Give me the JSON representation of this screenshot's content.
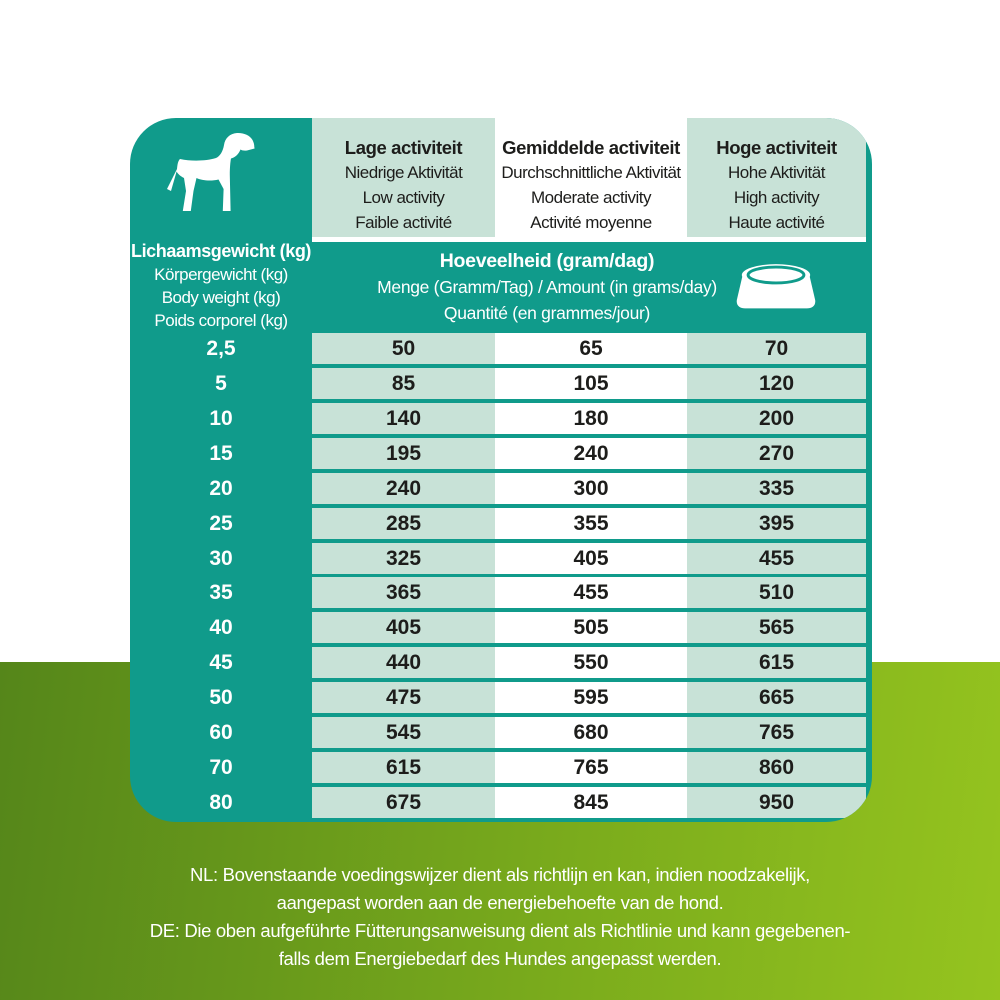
{
  "colors": {
    "teal": "#109b8b",
    "cell_green": "#c8e2d7",
    "cell_white": "#ffffff",
    "text_dark": "#1d1d1b",
    "text_white": "#ffffff",
    "band_gradient_start": "#55861a",
    "band_gradient_end": "#95c41f"
  },
  "icons": {
    "dog": "dog-silhouette",
    "bowl": "dog-bowl"
  },
  "weight_header": {
    "lines": [
      "Lichaamsgewicht (kg)",
      "Körpergewicht (kg)",
      "Body weight (kg)",
      "Poids corporel (kg)"
    ]
  },
  "activity_columns": [
    {
      "id": "low",
      "lines": [
        "Lage activiteit",
        "Niedrige Aktivität",
        "Low activity",
        "Faible activité"
      ]
    },
    {
      "id": "moderate",
      "lines": [
        "Gemiddelde activiteit",
        "Durchschnittliche Aktivität",
        "Moderate activity",
        "Activité moyenne"
      ]
    },
    {
      "id": "high",
      "lines": [
        "Hoge activiteit",
        "Hohe Aktivität",
        "High activity",
        "Haute activité"
      ]
    }
  ],
  "amount_banner": {
    "lines": [
      "Hoeveelheid (gram/dag)",
      "Menge (Gramm/Tag) / Amount (in grams/day)",
      "Quantité (en grammes/jour)"
    ]
  },
  "chart_data": {
    "type": "table",
    "title": "Hoeveelheid (gram/dag)",
    "columns": [
      "Lichaamsgewicht (kg)",
      "Lage activiteit",
      "Gemiddelde activiteit",
      "Hoge activiteit"
    ],
    "rows": [
      [
        "2,5",
        "50",
        "65",
        "70"
      ],
      [
        "5",
        "85",
        "105",
        "120"
      ],
      [
        "10",
        "140",
        "180",
        "200"
      ],
      [
        "15",
        "195",
        "240",
        "270"
      ],
      [
        "20",
        "240",
        "300",
        "335"
      ],
      [
        "25",
        "285",
        "355",
        "395"
      ],
      [
        "30",
        "325",
        "405",
        "455"
      ],
      [
        "35",
        "365",
        "455",
        "510"
      ],
      [
        "40",
        "405",
        "505",
        "565"
      ],
      [
        "45",
        "440",
        "550",
        "615"
      ],
      [
        "50",
        "475",
        "595",
        "665"
      ],
      [
        "60",
        "545",
        "680",
        "765"
      ],
      [
        "70",
        "615",
        "765",
        "860"
      ],
      [
        "80",
        "675",
        "845",
        "950"
      ]
    ]
  },
  "footer": {
    "lines": [
      "NL: Bovenstaande voedingswijzer dient als richtlijn en kan, indien noodzakelijk,",
      "aangepast worden aan de energiebehoefte van de hond.",
      "DE: Die oben aufgeführte Fütterungsanweisung dient als Richtlinie und kann gegebenen-",
      "falls dem Energiebedarf des Hundes angepasst werden."
    ]
  }
}
